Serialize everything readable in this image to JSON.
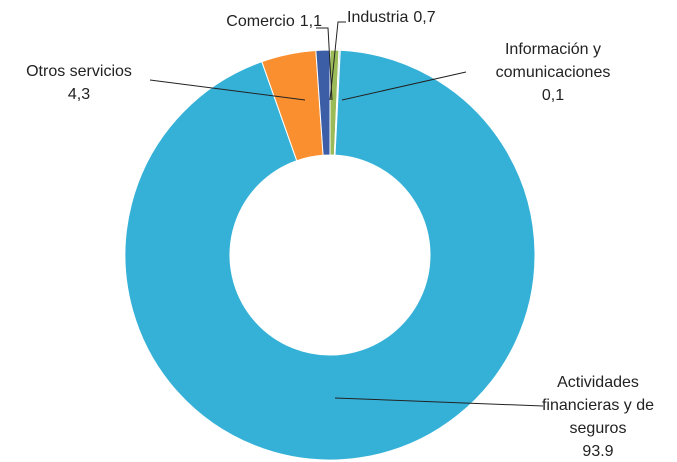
{
  "chart_data": {
    "type": "donut",
    "categories": [
      "Industria",
      "Información y comunicaciones",
      "Actividades financieras y de seguros",
      "Otros servicios",
      "Comercio"
    ],
    "values": [
      0.7,
      0.1,
      93.9,
      4.3,
      1.1
    ],
    "value_labels": [
      "0,7",
      "0,1",
      "93.9",
      "4,3",
      "1,1"
    ],
    "colors": [
      "#9bbb59",
      "#4bacc6",
      "#35b1d7",
      "#f98f2e",
      "#3b5ea7"
    ]
  }
}
